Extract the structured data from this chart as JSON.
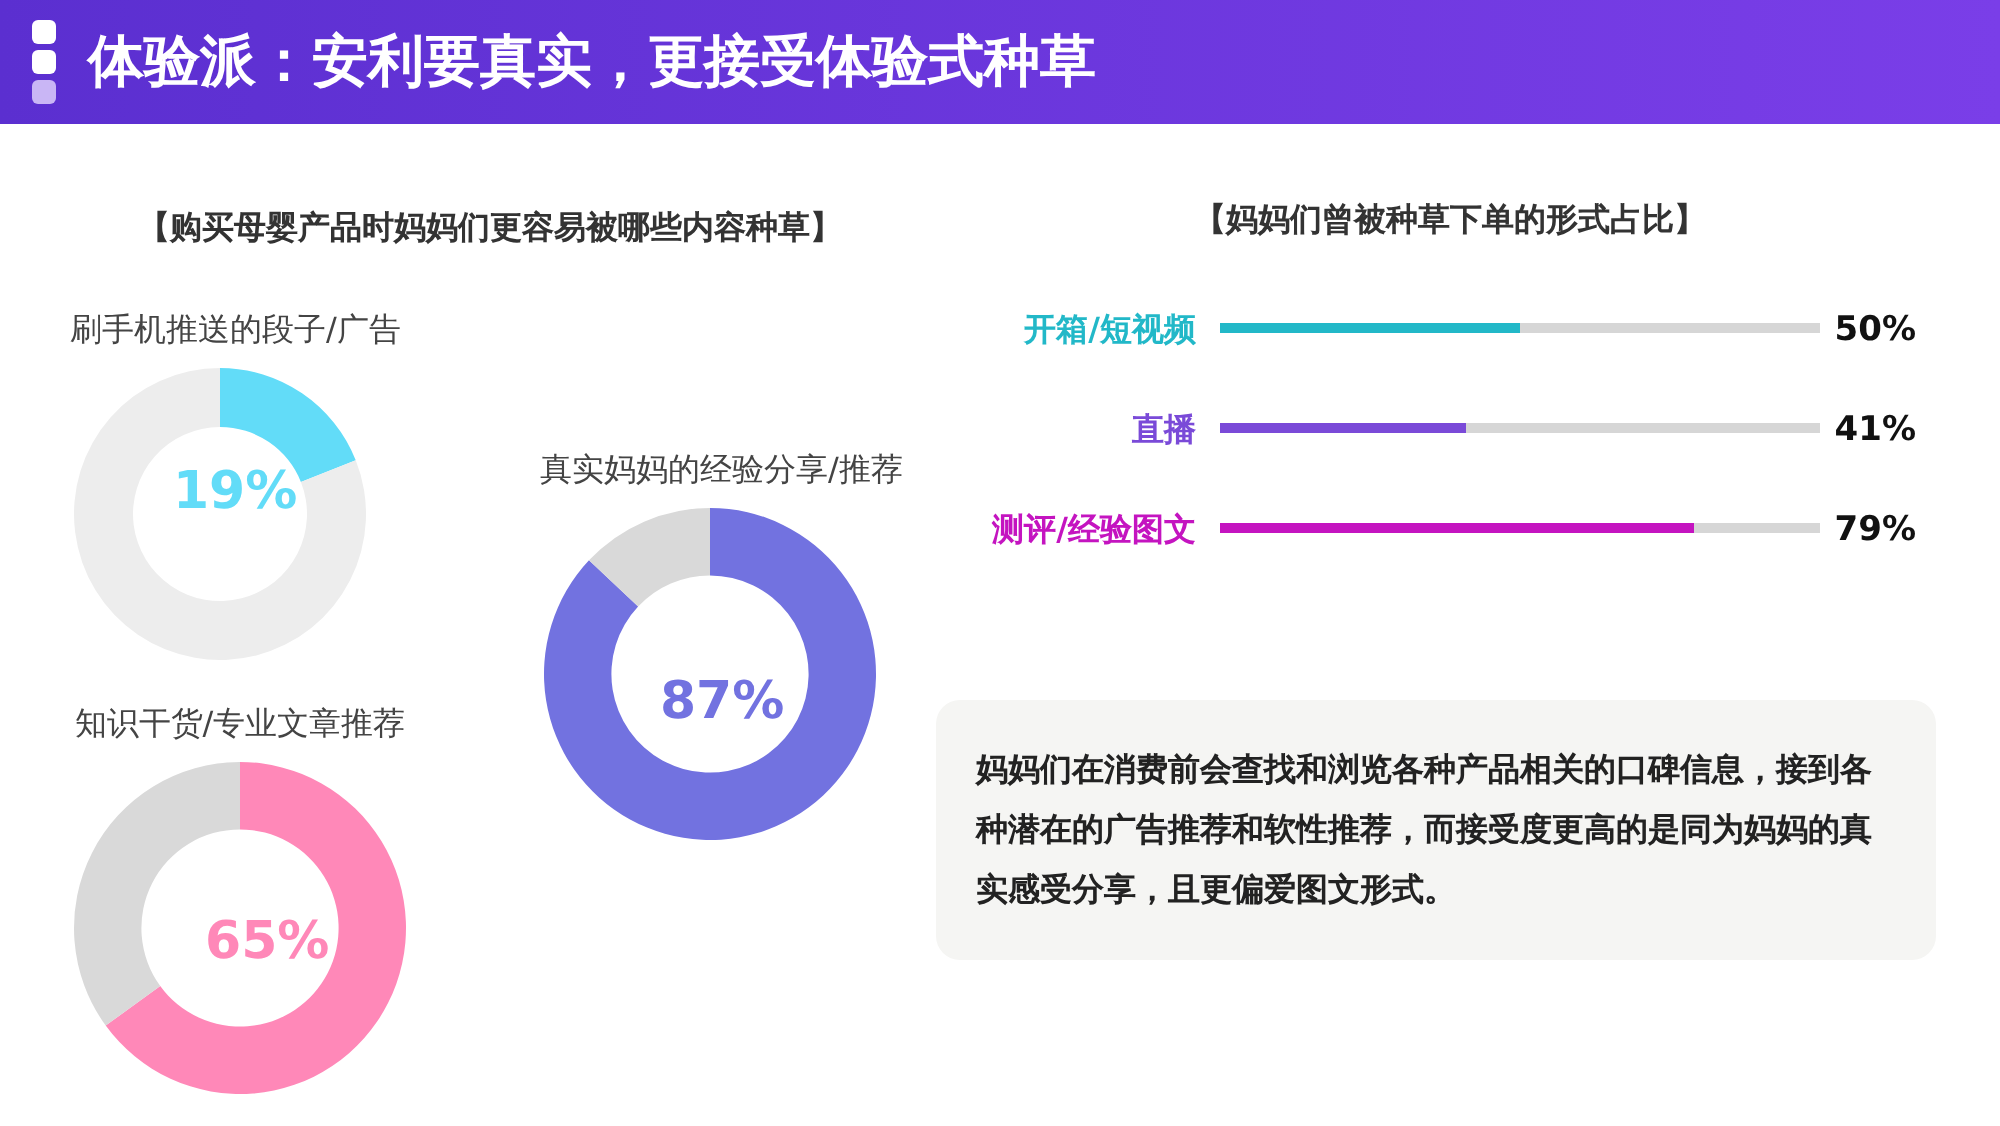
{
  "chart_data": [
    {
      "type": "donut",
      "title": "体验派：安利要真实，更接受体验式种草",
      "subtitle": "【购买母婴产品时妈妈们更容易被哪些内容种草】",
      "categories": [
        "刷手机推送的段子/广告",
        null
      ],
      "values": [
        19,
        81
      ],
      "colors": [
        "#62dcf8",
        "#ededed"
      ],
      "value_labels": [
        "19%",
        null
      ]
    },
    {
      "type": "donut",
      "categories": [
        "真实妈妈的经验分享/推荐",
        null
      ],
      "values": [
        87,
        13
      ],
      "colors": [
        "#7272e0",
        "#d9d9d9"
      ],
      "value_labels": [
        "87%",
        null
      ]
    },
    {
      "type": "donut",
      "categories": [
        "知识干货/专业文章推荐",
        null
      ],
      "values": [
        65,
        35
      ],
      "colors": [
        "#ff88b8",
        "#d9d9d9"
      ],
      "value_labels": [
        "65%",
        null
      ]
    },
    {
      "type": "bar",
      "orientation": "horizontal",
      "title": "【妈妈们曾被种草下单的形式占比】",
      "categories": [
        "开箱/短视频",
        "直播",
        "测评/经验图文"
      ],
      "values": [
        50,
        41,
        79
      ],
      "colors": [
        "#22b8c8",
        "#7a4ad8",
        "#c414c0"
      ],
      "value_labels": [
        "50%",
        "41%",
        "79%"
      ],
      "xlim": [
        0,
        100
      ],
      "tick_labels": "y"
    },
    {
      "type": "other",
      "annotations": [
        "妈妈们在消费前会查找和浏览各种产品相关的口碑信息，接到各种潜在的广告推荐和软性推荐，而接受度更高的是同为妈妈的真实感受分享，且更偏爱图文形式。"
      ]
    }
  ]
}
